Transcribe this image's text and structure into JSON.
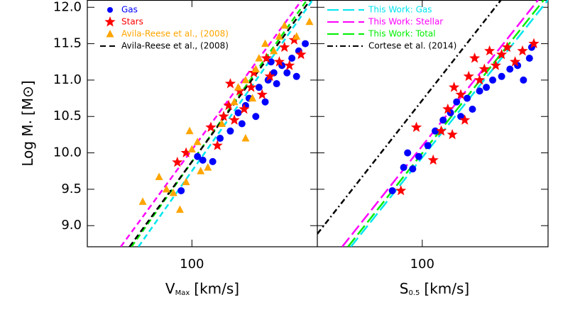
{
  "chart_data": [
    {
      "type": "scatter",
      "x_scale": "log",
      "xlim": [
        40,
        300
      ],
      "ylim": [
        8.71,
        12.1
      ],
      "xticks": [
        100
      ],
      "yticks": [
        {
          "value": 9.0,
          "label": "9.0"
        },
        9.5,
        {
          "value": 10.0,
          "label": "10.0"
        },
        10.5,
        {
          "value": 11.0,
          "label": "11.0"
        },
        11.5,
        {
          "value": 12.0,
          "label": "12.0"
        }
      ],
      "y_label": {
        "main": "Log M",
        "star": ".",
        "unit": "[M⊙]"
      },
      "x_label": {
        "main": "V",
        "sub": "Max",
        "unit": "[km/s]"
      },
      "legend": "upper left",
      "series": [
        {
          "name": "Gas",
          "color": "#0000ff",
          "marker": "circle",
          "x": [
            91,
            105,
            110,
            120,
            128,
            140,
            150,
            155,
            160,
            165,
            175,
            180,
            190,
            195,
            205,
            210,
            220,
            230,
            240,
            255,
            270,
            250,
            200
          ],
          "values": [
            9.48,
            9.95,
            9.9,
            9.88,
            10.2,
            10.3,
            10.55,
            10.4,
            10.65,
            10.75,
            10.5,
            10.9,
            10.7,
            11.0,
            11.1,
            10.95,
            11.2,
            11.1,
            11.3,
            11.4,
            11.5,
            11.05,
            11.25
          ]
        },
        {
          "name": "Stars",
          "color": "#ff0000",
          "marker": "star",
          "x": [
            88,
            95,
            118,
            125,
            132,
            138,
            145,
            152,
            158,
            168,
            172,
            185,
            192,
            198,
            215,
            225,
            235,
            245,
            260,
            140
          ],
          "values": [
            9.87,
            10.0,
            10.35,
            10.1,
            10.5,
            10.65,
            10.45,
            10.85,
            10.6,
            10.9,
            11.1,
            10.8,
            11.3,
            11.05,
            11.25,
            11.45,
            11.2,
            11.55,
            11.35,
            10.95
          ]
        },
        {
          "name": "Avila-Reese et al., (2008)",
          "color": "#ffa500",
          "marker": "triangle",
          "x": [
            65,
            75,
            80,
            85,
            90,
            95,
            98,
            100,
            105,
            108,
            115,
            130,
            145,
            150,
            160,
            170,
            180,
            190,
            205,
            215,
            225,
            250,
            280,
            160,
            175
          ],
          "values": [
            9.33,
            9.67,
            9.5,
            9.45,
            9.22,
            9.6,
            10.3,
            10.05,
            10.15,
            9.75,
            9.8,
            10.4,
            10.7,
            10.9,
            11.0,
            10.75,
            11.3,
            11.5,
            11.4,
            11.6,
            11.75,
            11.6,
            11.8,
            10.2,
            11.15
          ]
        },
        {
          "color": "#ff00ff",
          "style": "dash",
          "x": [
            53.6,
            262
          ],
          "values": [
            8.71,
            12.1
          ]
        },
        {
          "color": "#00ee00",
          "style": "dash",
          "x": [
            58.9,
            274
          ],
          "values": [
            8.71,
            12.1
          ]
        },
        {
          "color": "#00e5ee",
          "style": "dash",
          "x": [
            62.6,
            288
          ],
          "values": [
            8.71,
            12.1
          ]
        },
        {
          "name": "Avila-Reese et al., (2008)",
          "color": "#000000",
          "style": "dash",
          "x": [
            57.9,
            282
          ],
          "values": [
            8.71,
            12.1
          ]
        }
      ]
    },
    {
      "type": "scatter",
      "x_scale": "log",
      "xlim": [
        40,
        300
      ],
      "ylim": [
        8.71,
        12.1
      ],
      "xticks": [
        100
      ],
      "x_label": {
        "main": "S",
        "sub": "0.5",
        "unit": "[km/s]"
      },
      "legend": "upper left",
      "series": [
        {
          "color": "#0000ff",
          "marker": "circle",
          "x": [
            77,
            85,
            88,
            92,
            97,
            105,
            112,
            120,
            128,
            135,
            140,
            148,
            155,
            165,
            175,
            185,
            200,
            215,
            230,
            255,
            260,
            242
          ],
          "values": [
            9.48,
            9.8,
            10.0,
            9.78,
            9.95,
            10.1,
            10.3,
            10.45,
            10.55,
            10.7,
            10.5,
            10.75,
            10.6,
            10.85,
            10.9,
            11.0,
            11.05,
            11.15,
            11.2,
            11.3,
            11.45,
            11.0
          ]
        },
        {
          "color": "#ff0000",
          "marker": "star",
          "x": [
            83,
            95,
            110,
            118,
            125,
            132,
            140,
            150,
            158,
            165,
            172,
            180,
            190,
            200,
            210,
            225,
            240,
            265,
            145,
            130
          ],
          "values": [
            9.48,
            10.35,
            9.9,
            10.3,
            10.6,
            10.9,
            10.8,
            11.05,
            11.3,
            11.0,
            11.15,
            11.4,
            11.2,
            11.35,
            11.45,
            11.25,
            11.4,
            11.5,
            10.45,
            10.25
          ]
        },
        {
          "name": "This Work: Gas",
          "color": "#00e5ee",
          "style": "longdash",
          "x": [
            53.6,
            300
          ],
          "values": [
            8.71,
            12.1
          ]
        },
        {
          "name": "This Work: Stellar",
          "color": "#ff00ff",
          "style": "longdash",
          "x": [
            49.7,
            275
          ],
          "values": [
            8.71,
            12.1
          ]
        },
        {
          "name": "This Work: Total",
          "color": "#00ee00",
          "style": "longdash",
          "x": [
            52.3,
            289
          ],
          "values": [
            8.71,
            12.1
          ]
        },
        {
          "name": "Cortese et al. (2014)",
          "color": "#000000",
          "style": "dashdot",
          "x": [
            40,
            198.9
          ],
          "values": [
            8.887,
            12.1
          ]
        }
      ]
    }
  ]
}
